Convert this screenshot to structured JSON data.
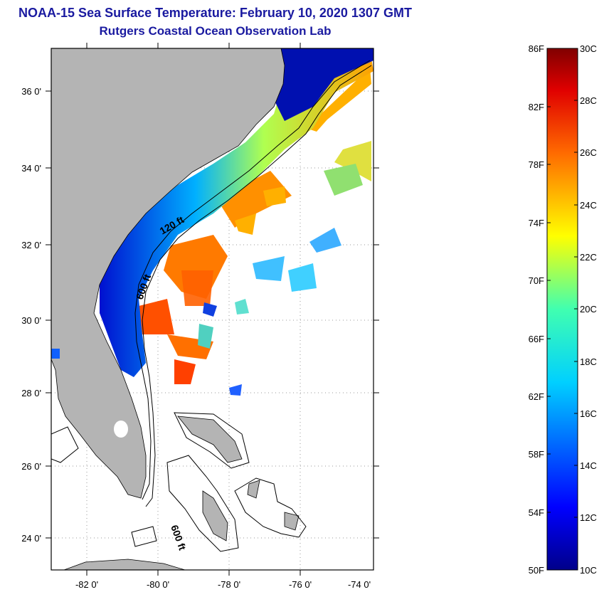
{
  "title": {
    "line1": "NOAA-15 Sea Surface Temperature:  February 10, 2020 1307 GMT",
    "line2": "Rutgers Coastal Ocean Observation Lab"
  },
  "map": {
    "lon_range": [
      -83,
      -73
    ],
    "lat_range": [
      23,
      37
    ],
    "lat_labels": [
      "24 0'",
      "26 0'",
      "28 0'",
      "30 0'",
      "32 0'",
      "34 0'",
      "36 0'"
    ],
    "lon_labels": [
      "-82 0'",
      "-80 0'",
      "-78 0'",
      "-76 0'",
      "-74 0'"
    ],
    "contour_labels": [
      "120 ft",
      "600 ft",
      "600 ft"
    ],
    "colors": {
      "land": "#b4b4b4",
      "cold": "#0000a0",
      "warm": "#ff6a00"
    }
  },
  "colorbar": {
    "fahrenheit_labels": [
      "86F",
      "82F",
      "78F",
      "74F",
      "70F",
      "66F",
      "62F",
      "58F",
      "54F",
      "50F"
    ],
    "celsius_labels": [
      "30C",
      "28C",
      "26C",
      "24C",
      "22C",
      "20C",
      "18C",
      "16C",
      "14C",
      "12C",
      "10C"
    ],
    "range_c": [
      10,
      30
    ],
    "colormap": "jet"
  }
}
